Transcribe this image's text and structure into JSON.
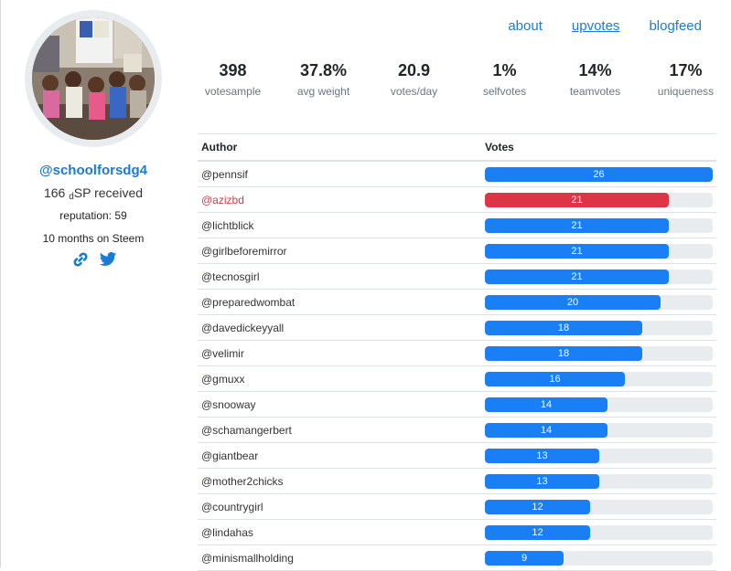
{
  "profile": {
    "username": "@schoolforsdg4",
    "sp_amount": "166",
    "sp_prefix": "d",
    "sp_suffix": "SP received",
    "reputation": "reputation: 59",
    "tenure": "10 months on Steem"
  },
  "nav": [
    {
      "label": "about",
      "active": false
    },
    {
      "label": "upvotes",
      "active": true
    },
    {
      "label": "blogfeed",
      "active": false
    }
  ],
  "stats": [
    {
      "value": "398",
      "label": "votesample"
    },
    {
      "value": "37.8%",
      "label": "avg weight"
    },
    {
      "value": "20.9",
      "label": "votes/day"
    },
    {
      "value": "1%",
      "label": "selfvotes"
    },
    {
      "value": "14%",
      "label": "teamvotes"
    },
    {
      "value": "17%",
      "label": "uniqueness"
    }
  ],
  "table": {
    "headers": {
      "author": "Author",
      "votes": "Votes"
    },
    "max_votes": 26,
    "rows": [
      {
        "author": "@pennsif",
        "votes": 26,
        "highlight": false
      },
      {
        "author": "@azizbd",
        "votes": 21,
        "highlight": true
      },
      {
        "author": "@lichtblick",
        "votes": 21,
        "highlight": false
      },
      {
        "author": "@girlbeforemirror",
        "votes": 21,
        "highlight": false
      },
      {
        "author": "@tecnosgirl",
        "votes": 21,
        "highlight": false
      },
      {
        "author": "@preparedwombat",
        "votes": 20,
        "highlight": false
      },
      {
        "author": "@davedickeyyall",
        "votes": 18,
        "highlight": false
      },
      {
        "author": "@velimir",
        "votes": 18,
        "highlight": false
      },
      {
        "author": "@gmuxx",
        "votes": 16,
        "highlight": false
      },
      {
        "author": "@snooway",
        "votes": 14,
        "highlight": false
      },
      {
        "author": "@schamangerbert",
        "votes": 14,
        "highlight": false
      },
      {
        "author": "@giantbear",
        "votes": 13,
        "highlight": false
      },
      {
        "author": "@mother2chicks",
        "votes": 13,
        "highlight": false
      },
      {
        "author": "@countrygirl",
        "votes": 12,
        "highlight": false
      },
      {
        "author": "@lindahas",
        "votes": 12,
        "highlight": false
      },
      {
        "author": "@minismallholding",
        "votes": 9,
        "highlight": false
      }
    ]
  },
  "colors": {
    "accent": "#1a7ef5",
    "highlight": "#dc3545",
    "link": "#1a7bd6"
  },
  "icons": {
    "link": "link-icon",
    "twitter": "twitter-icon"
  }
}
